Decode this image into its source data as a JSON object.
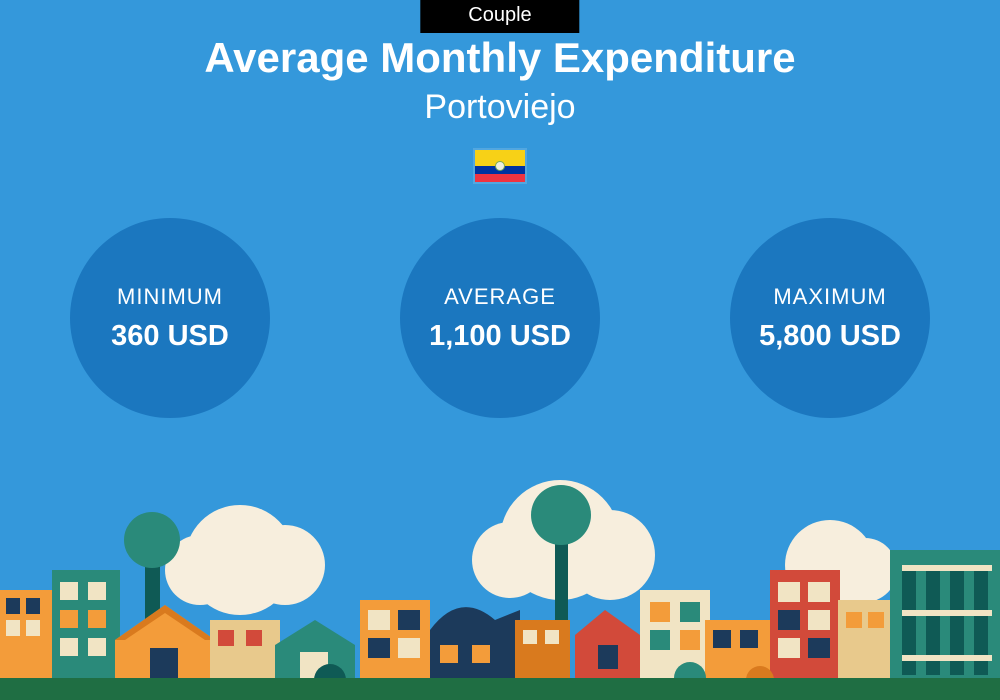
{
  "colors": {
    "sky": "#3498db",
    "badge_bg": "#000000",
    "circle_bg": "#1b77bf",
    "ground": "#1f6e43",
    "flag_yellow": "#f7d117",
    "flag_blue": "#0033a0",
    "flag_red": "#ef3340",
    "cloud": "#f7eedd",
    "orange": "#f39c3a",
    "orange_dark": "#d97a1e",
    "teal": "#2a8a7a",
    "teal_dark": "#0f5a55",
    "navy": "#1c3a5b",
    "red": "#d24a3a",
    "sand": "#e8c98c",
    "cream": "#f1e4c4",
    "brown": "#8a5a2b"
  },
  "badge": "Couple",
  "title": "Average Monthly Expenditure",
  "subtitle": "Portoviejo",
  "metrics": [
    {
      "label": "MINIMUM",
      "value": "360 USD"
    },
    {
      "label": "AVERAGE",
      "value": "1,100 USD"
    },
    {
      "label": "MAXIMUM",
      "value": "5,800 USD"
    }
  ]
}
